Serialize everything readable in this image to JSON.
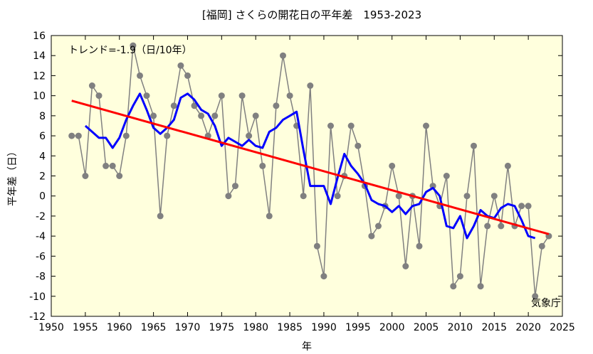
{
  "chart_data": {
    "type": "line",
    "title": "[福岡] さくらの開花日の平年差　1953-2023",
    "xlabel": "年",
    "ylabel": "平年差（日）",
    "annotation": "トレンド=-1.9（日/10年）",
    "source": "気象庁",
    "xlim": [
      1950,
      2025
    ],
    "ylim": [
      -12,
      16
    ],
    "xticks": [
      1950,
      1955,
      1960,
      1965,
      1970,
      1975,
      1980,
      1985,
      1990,
      1995,
      2000,
      2005,
      2010,
      2015,
      2020,
      2025
    ],
    "yticks": [
      -12,
      -10,
      -8,
      -6,
      -4,
      -2,
      0,
      2,
      4,
      6,
      8,
      10,
      12,
      14,
      16
    ],
    "grid": false,
    "colors": {
      "plot_background": "#ffffdd",
      "annual": "#808080",
      "moving_average": "#0000ff",
      "trend": "#ff0000"
    },
    "series": [
      {
        "style": "line-markers",
        "x": [
          1953,
          1954,
          1955,
          1956,
          1957,
          1958,
          1959,
          1960,
          1961,
          1962,
          1963,
          1964,
          1965,
          1966,
          1967,
          1968,
          1969,
          1970,
          1971,
          1972,
          1973,
          1974,
          1975,
          1976,
          1977,
          1978,
          1979,
          1980,
          1981,
          1982,
          1983,
          1984,
          1985,
          1986,
          1987,
          1988,
          1989,
          1990,
          1991,
          1992,
          1993,
          1994,
          1995,
          1996,
          1997,
          1998,
          1999,
          2000,
          2001,
          2002,
          2003,
          2004,
          2005,
          2006,
          2007,
          2008,
          2009,
          2010,
          2011,
          2012,
          2013,
          2014,
          2015,
          2016,
          2017,
          2018,
          2019,
          2020,
          2021,
          2022,
          2023
        ],
        "values": [
          6,
          6,
          2,
          11,
          10,
          3,
          3,
          2,
          6,
          15,
          12,
          10,
          8,
          -2,
          6,
          9,
          13,
          12,
          9,
          8,
          6,
          8,
          10,
          0,
          1,
          10,
          6,
          8,
          3,
          -2,
          9,
          14,
          10,
          7,
          0,
          11,
          -5,
          -8,
          7,
          0,
          2,
          7,
          5,
          1,
          -4,
          -3,
          -1,
          3,
          0,
          -7,
          0,
          -5,
          7,
          1,
          -1,
          2,
          -9,
          -8,
          0,
          5,
          -9,
          -3,
          0,
          -3,
          3,
          -3,
          -1,
          -1,
          -10,
          -5,
          -4
        ]
      },
      {
        "style": "line",
        "x": [
          1955,
          1956,
          1957,
          1958,
          1959,
          1960,
          1961,
          1962,
          1963,
          1964,
          1965,
          1966,
          1967,
          1968,
          1969,
          1970,
          1971,
          1972,
          1973,
          1974,
          1975,
          1976,
          1977,
          1978,
          1979,
          1980,
          1981,
          1982,
          1983,
          1984,
          1985,
          1986,
          1987,
          1988,
          1989,
          1990,
          1991,
          1992,
          1993,
          1994,
          1995,
          1996,
          1997,
          1998,
          1999,
          2000,
          2001,
          2002,
          2003,
          2004,
          2005,
          2006,
          2007,
          2008,
          2009,
          2010,
          2011,
          2012,
          2013,
          2014,
          2015,
          2016,
          2017,
          2018,
          2019,
          2020,
          2021
        ],
        "values": [
          7,
          6.4,
          5.8,
          5.8,
          4.8,
          5.8,
          7.6,
          9,
          10.2,
          8.6,
          6.8,
          6.2,
          6.8,
          7.6,
          9.8,
          10.2,
          9.6,
          8.6,
          8.2,
          7,
          5,
          5.8,
          5.4,
          5,
          5.6,
          5,
          4.8,
          6.4,
          6.8,
          7.6,
          8,
          8.4,
          4.6,
          1,
          1,
          1,
          -0.8,
          1.8,
          4.2,
          3,
          2.2,
          1.2,
          -0.4,
          -0.8,
          -1,
          -1.6,
          -1,
          -1.8,
          -1,
          -0.8,
          0.4,
          0.8,
          0,
          -3,
          -3.2,
          -2,
          -4.2,
          -3,
          -1.4,
          -2,
          -2.2,
          -1.2,
          -0.8,
          -1,
          -2.4,
          -4,
          -4.2
        ]
      },
      {
        "style": "trend",
        "x": [
          1953,
          2023
        ],
        "values": [
          9.5,
          -3.8
        ]
      }
    ]
  }
}
